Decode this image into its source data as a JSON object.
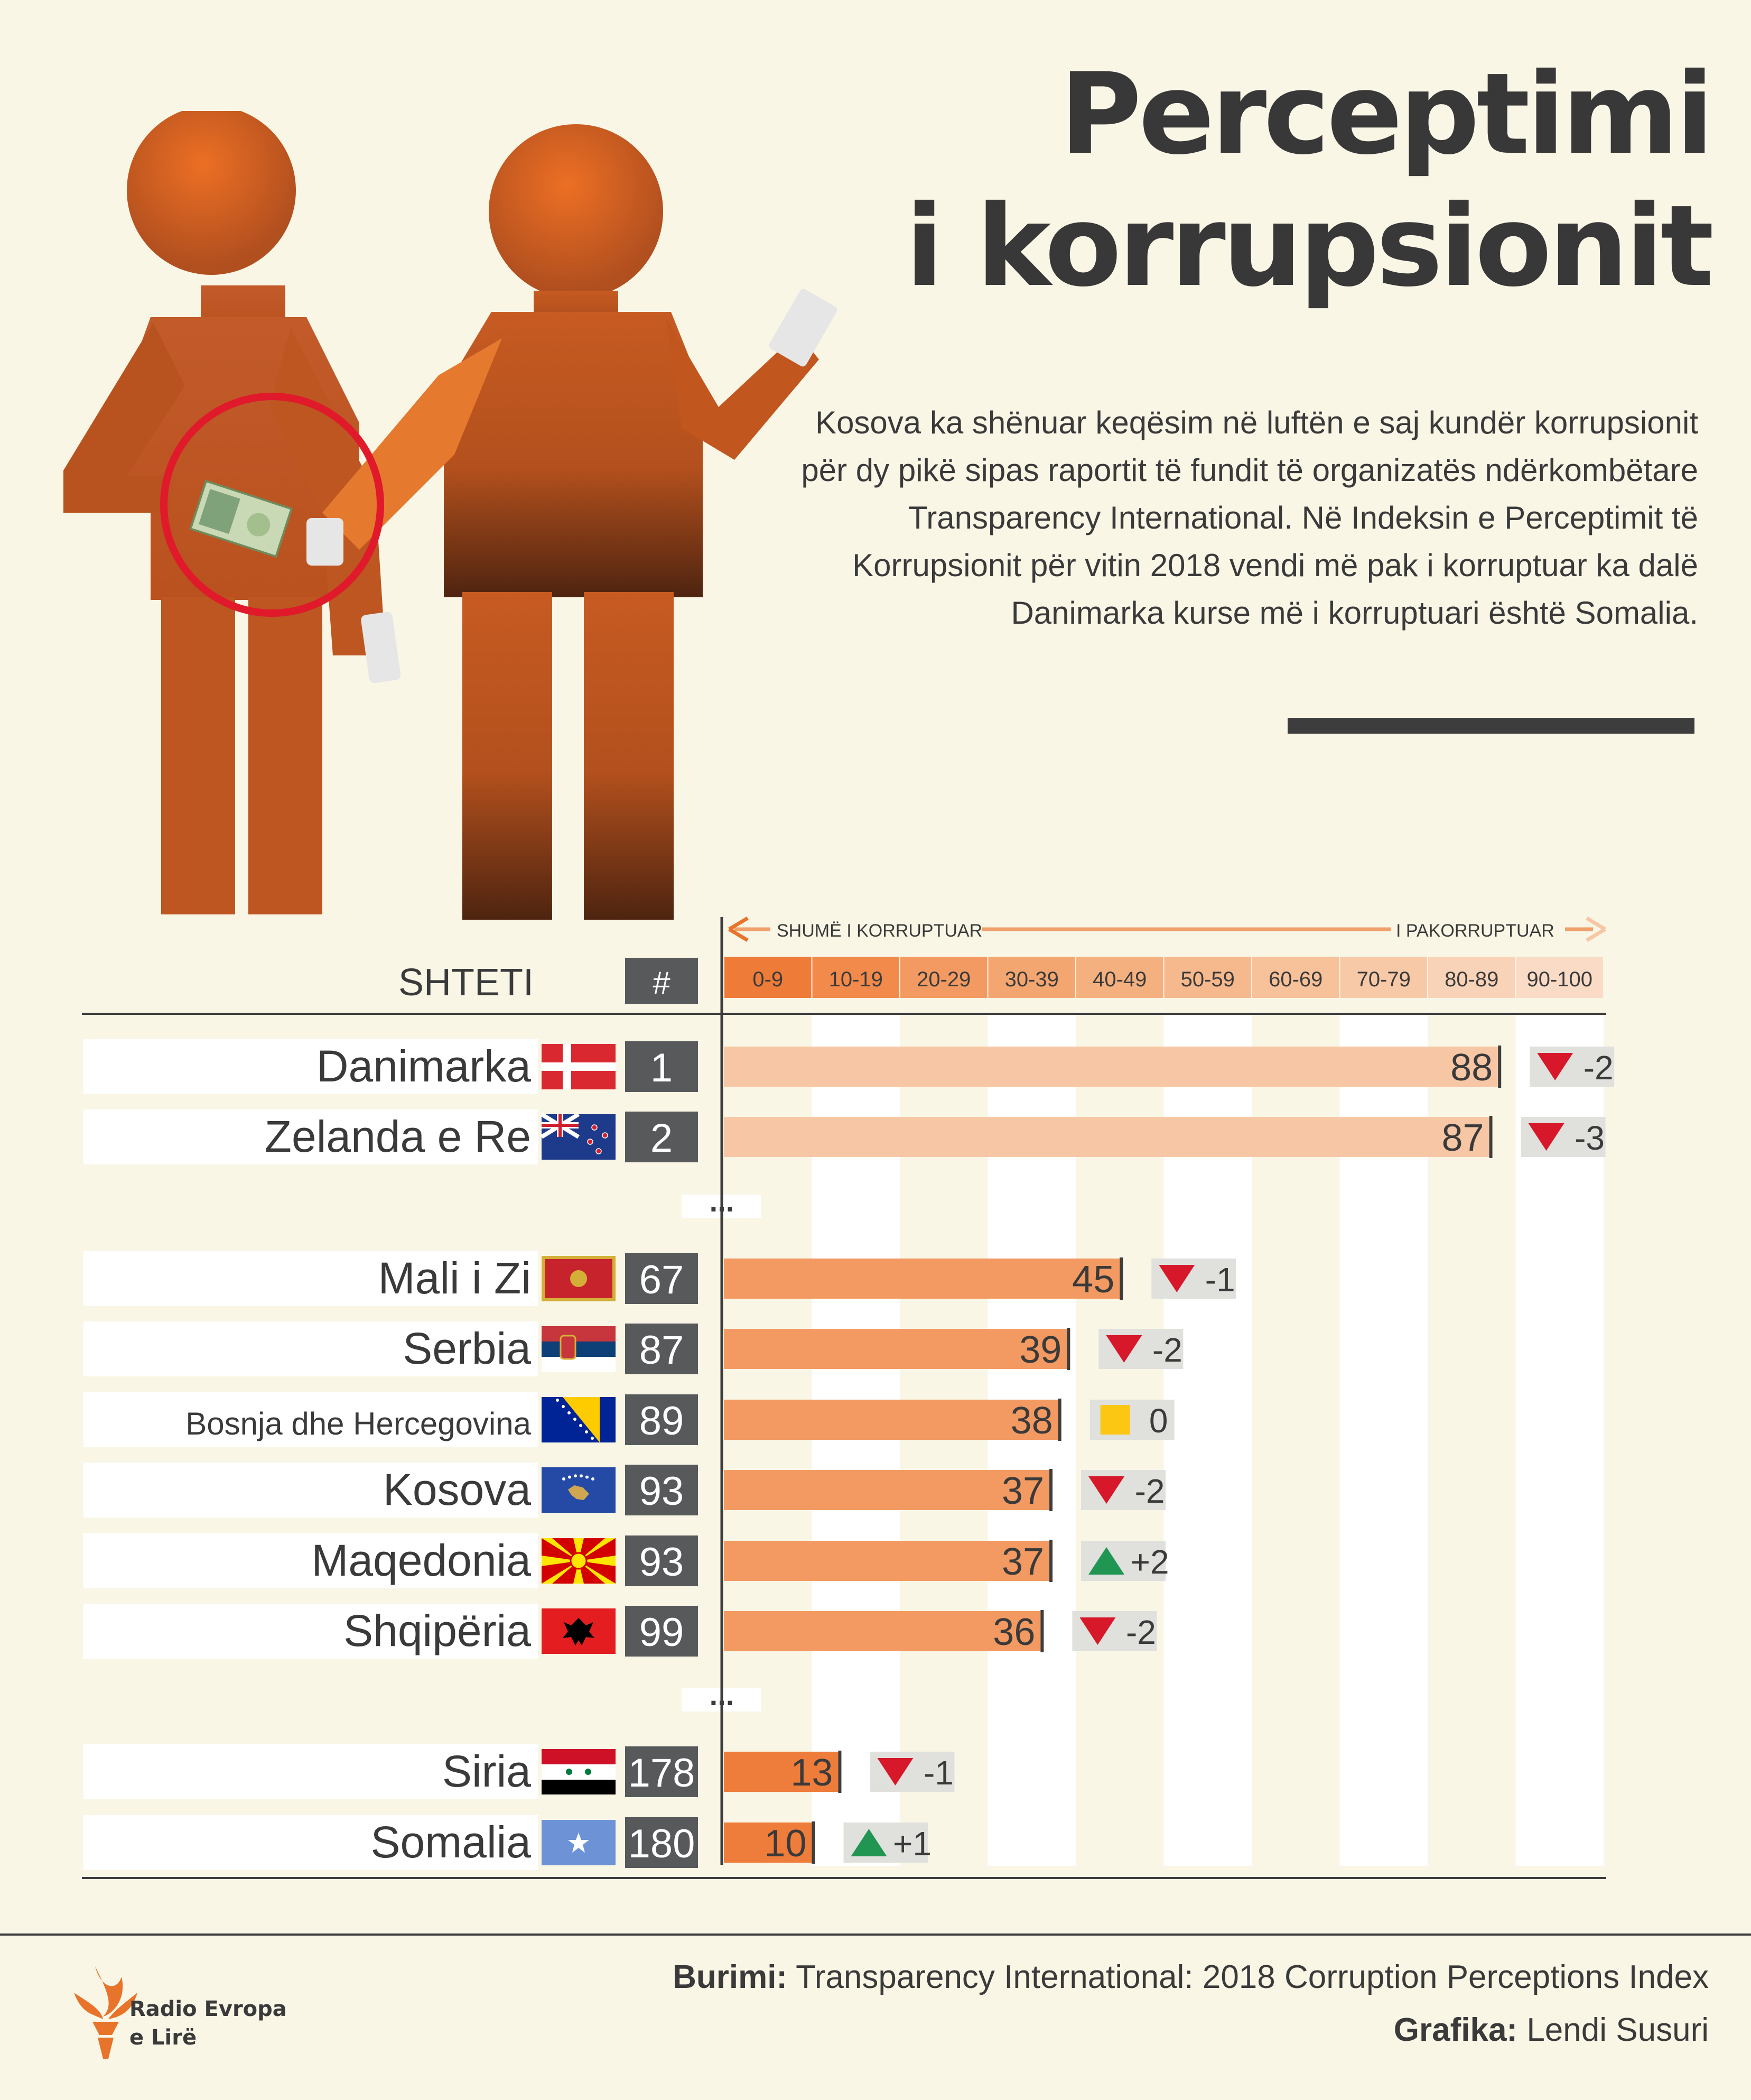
{
  "title": {
    "line1": "Perceptimi",
    "line2": "i korrupsionit"
  },
  "intro": "Kosova ka shënuar keqësim në luftën e saj kundër korrupsionit për dy pikë sipas raportit të fundit të organizatës ndërkombëtare Transparency International. Në Indeksin e Perceptimit të Korrupsionit për vitin 2018 vendi më pak i korruptuar ka dalë Danimarka kurse më i korruptuari është Somalia.",
  "colors": {
    "orange": "#e8732a",
    "bar_dark": "#ee7d3b",
    "bar_mid": "#f39a62",
    "bar_light": "#f7c7a5",
    "rank_box": "#58595b",
    "down_arrow": "#d7182a",
    "up_arrow": "#219653",
    "neutral": "#fcc712",
    "change_bg": "#e0e0dd"
  },
  "chart_data": {
    "type": "bar",
    "orientation": "horizontal",
    "header": {
      "country_col": "SHTETI",
      "rank_col": "#"
    },
    "scale_arrow": {
      "left_label": "SHUMË I KORRUPTUAR",
      "right_label": "I PAKORRUPTUAR"
    },
    "bins": [
      "0-9",
      "10-19",
      "20-29",
      "30-39",
      "40-49",
      "50-59",
      "60-69",
      "70-79",
      "80-89",
      "90-100"
    ],
    "xlim": [
      0,
      100
    ],
    "ellipsis": "...",
    "rows": [
      {
        "country": "Danimarka",
        "flag": "denmark-flag",
        "rank": "1",
        "score": 88,
        "change": "-2",
        "trend": "down"
      },
      {
        "country": "Zelanda e Re",
        "flag": "new-zealand-flag",
        "rank": "2",
        "score": 87,
        "change": "-3",
        "trend": "down"
      },
      {
        "country": "Mali i Zi",
        "flag": "montenegro-flag",
        "rank": "67",
        "score": 45,
        "change": "-1",
        "trend": "down"
      },
      {
        "country": "Serbia",
        "flag": "serbia-flag",
        "rank": "87",
        "score": 39,
        "change": "-2",
        "trend": "down"
      },
      {
        "country": "Bosnja dhe Hercegovina",
        "flag": "bosnia-flag",
        "rank": "89",
        "score": 38,
        "change": "0",
        "trend": "same"
      },
      {
        "country": "Kosova",
        "flag": "kosovo-flag",
        "rank": "93",
        "score": 37,
        "change": "-2",
        "trend": "down"
      },
      {
        "country": "Maqedonia",
        "flag": "macedonia-flag",
        "rank": "93",
        "score": 37,
        "change": "+2",
        "trend": "up"
      },
      {
        "country": "Shqipëria",
        "flag": "albania-flag",
        "rank": "99",
        "score": 36,
        "change": "-2",
        "trend": "down"
      },
      {
        "country": "Siria",
        "flag": "syria-flag",
        "rank": "178",
        "score": 13,
        "change": "-1",
        "trend": "down"
      },
      {
        "country": "Somalia",
        "flag": "somalia-flag",
        "rank": "180",
        "score": 10,
        "change": "+1",
        "trend": "up"
      }
    ]
  },
  "footer": {
    "source_label": "Burimi:",
    "source_text": "Transparency International: 2018 Corruption Perceptions Index",
    "credit_label": "Grafika:",
    "credit_text": "Lendi Susuri",
    "logo_line1": "Radio Evropa",
    "logo_line2": "e Lirë"
  }
}
